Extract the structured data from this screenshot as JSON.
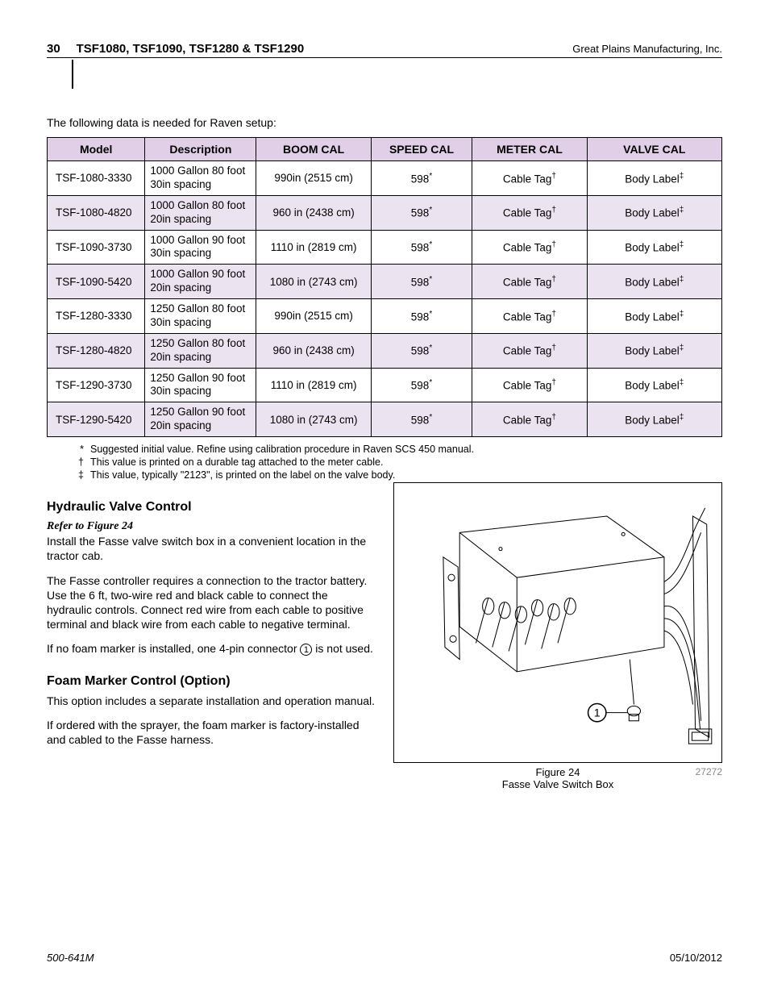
{
  "header": {
    "page_number": "30",
    "title": "TSF1080, TSF1090, TSF1280 & TSF1290",
    "company": "Great Plains Manufacturing, Inc."
  },
  "intro_text": "The following data is needed for Raven setup:",
  "table": {
    "columns": [
      "Model",
      "Description",
      "BOOM CAL",
      "SPEED CAL",
      "METER CAL",
      "VALVE CAL"
    ],
    "speed_sup": "*",
    "meter_sup": "†",
    "valve_sup": "‡",
    "rows": [
      {
        "model": "TSF-1080-3330",
        "desc": "1000 Gallon 80 foot 30in spacing",
        "boom": "990in (2515 cm)",
        "speed": "598",
        "meter": "Cable Tag",
        "valve": "Body Label",
        "alt": false
      },
      {
        "model": "TSF-1080-4820",
        "desc": "1000 Gallon 80 foot 20in spacing",
        "boom": "960 in (2438 cm)",
        "speed": "598",
        "meter": "Cable Tag",
        "valve": "Body Label",
        "alt": true
      },
      {
        "model": "TSF-1090-3730",
        "desc": "1000 Gallon 90 foot 30in spacing",
        "boom": "1110 in (2819 cm)",
        "speed": "598",
        "meter": "Cable Tag",
        "valve": "Body Label",
        "alt": false
      },
      {
        "model": "TSF-1090-5420",
        "desc": "1000 Gallon 90 foot 20in spacing",
        "boom": "1080 in (2743 cm)",
        "speed": "598",
        "meter": "Cable Tag",
        "valve": "Body Label",
        "alt": true
      },
      {
        "model": "TSF-1280-3330",
        "desc": "1250 Gallon 80 foot 30in spacing",
        "boom": "990in (2515 cm)",
        "speed": "598",
        "meter": "Cable Tag",
        "valve": "Body Label",
        "alt": false
      },
      {
        "model": "TSF-1280-4820",
        "desc": "1250 Gallon 80 foot 20in spacing",
        "boom": "960 in (2438 cm)",
        "speed": "598",
        "meter": "Cable Tag",
        "valve": "Body Label",
        "alt": true
      },
      {
        "model": "TSF-1290-3730",
        "desc": "1250 Gallon 90 foot 30in spacing",
        "boom": "1110 in (2819 cm)",
        "speed": "598",
        "meter": "Cable Tag",
        "valve": "Body Label",
        "alt": false
      },
      {
        "model": "TSF-1290-5420",
        "desc": "1250 Gallon 90 foot 20in spacing",
        "boom": "1080 in (2743 cm)",
        "speed": "598",
        "meter": "Cable Tag",
        "valve": "Body Label",
        "alt": true
      }
    ]
  },
  "footnotes": [
    {
      "sym": "*",
      "text": "Suggested initial value. Refine using calibration procedure in Raven SCS 450 manual."
    },
    {
      "sym": "†",
      "text": "This value is printed on a durable tag attached to the meter cable."
    },
    {
      "sym": "‡",
      "text": "This value, typically \"2123\", is printed on the label on the valve body."
    }
  ],
  "hydraulic": {
    "heading": "Hydraulic Valve Control",
    "ref": "Refer to Figure 24",
    "p1": "Install the Fasse valve switch box in a convenient location in the tractor cab.",
    "p2": "The Fasse controller requires a connection to the tractor battery. Use the 6 ft, two-wire red and black cable to connect the hydraulic controls. Connect red wire from each cable to positive terminal and black wire from each cable to negative terminal.",
    "p3a": "If no foam marker is installed, one 4-pin connector ",
    "p3b": " is not used.",
    "circled": "1"
  },
  "foam": {
    "heading": "Foam Marker Control (Option)",
    "p1": "This option includes a separate installation and operation manual.",
    "p2": "If ordered with the sprayer, the foam marker is factory-installed and cabled to the Fasse harness."
  },
  "figure": {
    "label": "Figure 24",
    "caption": "Fasse Valve Switch Box",
    "id": "27272",
    "circled": "1"
  },
  "footer": {
    "left": "500-641M",
    "right": "05/10/2012"
  }
}
